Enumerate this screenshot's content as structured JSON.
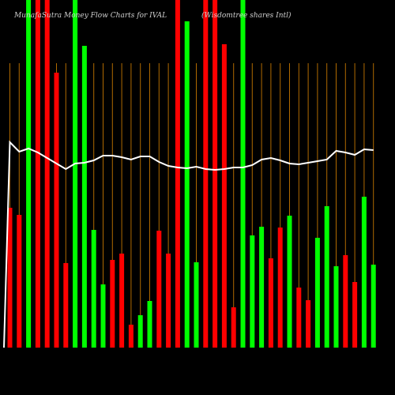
{
  "chart_data": {
    "type": "bar",
    "title": "MunafaSutra  Money Flow  Charts for IVAL",
    "subtitle": "(Wisdomtree shares Intl)",
    "ylim": [
      0,
      440
    ],
    "values": [
      177,
      168,
      440,
      440,
      440,
      348,
      107,
      440,
      382,
      149,
      80,
      111,
      119,
      29,
      41,
      59,
      148,
      119,
      440,
      413,
      108,
      440,
      440,
      384,
      51,
      440,
      142,
      153,
      113,
      152,
      167,
      76,
      60,
      139,
      179,
      103,
      117,
      83,
      191,
      105
    ],
    "colors": [
      "#ff0000",
      "#ff0000",
      "#00ff00",
      "#ff0000",
      "#ff0000",
      "#ff0000",
      "#ff0000",
      "#00ff00",
      "#00ff00",
      "#00ff00",
      "#00ff00",
      "#ff0000",
      "#ff0000",
      "#ff0000",
      "#00ff00",
      "#00ff00",
      "#ff0000",
      "#ff0000",
      "#ff0000",
      "#00ff00",
      "#00ff00",
      "#ff0000",
      "#ff0000",
      "#ff0000",
      "#ff0000",
      "#00ff00",
      "#00ff00",
      "#00ff00",
      "#ff0000",
      "#ff0000",
      "#00ff00",
      "#ff0000",
      "#ff0000",
      "#00ff00",
      "#00ff00",
      "#00ff00",
      "#ff0000",
      "#ff0000",
      "#00ff00",
      "#00ff00"
    ],
    "line": {
      "color": "#ffffff",
      "values": [
        260,
        248,
        252,
        247,
        240,
        233,
        226,
        233,
        234,
        237,
        243,
        243,
        241,
        238,
        242,
        242,
        235,
        230,
        228,
        227,
        229,
        226,
        225,
        226,
        228,
        228,
        231,
        238,
        240,
        237,
        233,
        232,
        234,
        236,
        238,
        249,
        247,
        244,
        251,
        250
      ]
    },
    "gridline_color": "#b06a00"
  }
}
